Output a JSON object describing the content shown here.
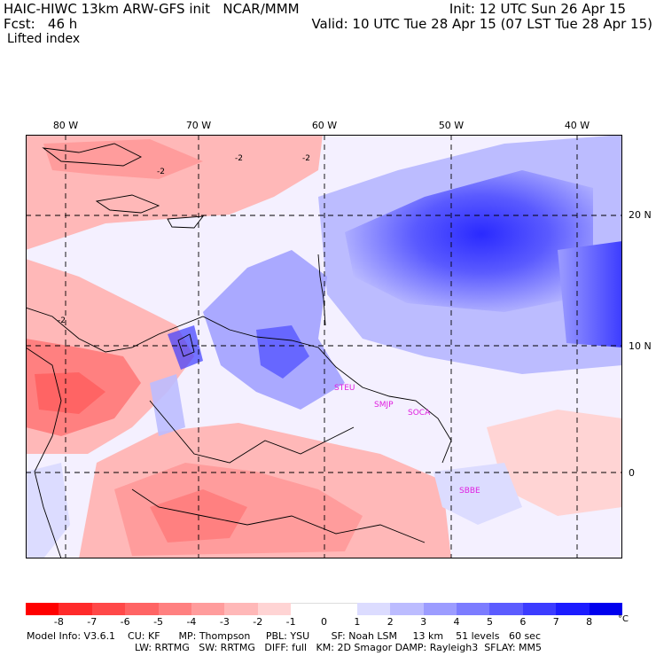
{
  "header": {
    "model_line": "HAIC-HIWC 13km ARW-GFS init   NCAR/MMM",
    "init_line": "Init: 12 UTC Sun 26 Apr 15",
    "fcst_line": "Fcst:   46 h",
    "valid_line": "Valid: 10 UTC Tue 28 Apr 15 (07 LST Tue 28 Apr 15)",
    "field_name": "Lifted index"
  },
  "map": {
    "lon_labels": [
      "80 W",
      "70 W",
      "60 W",
      "50 W",
      "40 W"
    ],
    "lat_labels": [
      "20 N",
      "10 N",
      "0"
    ],
    "contour_label": "-2",
    "regions": [
      "STEU",
      "SMJP",
      "SOCA",
      "SBBE"
    ]
  },
  "legend": {
    "values": [
      "-8",
      "-7",
      "-6",
      "-5",
      "-4",
      "-3",
      "-2",
      "-1",
      "0",
      "1",
      "2",
      "3",
      "4",
      "5",
      "6",
      "7",
      "8"
    ],
    "unit": "°C",
    "colors": [
      "#ff0000",
      "#ff2a2a",
      "#ff4848",
      "#ff6464",
      "#ff8080",
      "#ff9c9c",
      "#ffb8b8",
      "#ffd4d4",
      "#ffffff",
      "#ffffff",
      "#dcdcff",
      "#bcbcff",
      "#9c9cff",
      "#7c7cff",
      "#5c5cff",
      "#3c3cff",
      "#1c1cff",
      "#0000ee"
    ]
  },
  "footer": {
    "line1": "Model Info: V3.6.1    CU: KF      MP: Thompson     PBL: YSU       SF: Noah LSM     13 km    51 levels   60 sec",
    "line2": "LW: RRTMG   SW: RRTMG   DIFF: full   KM: 2D Smagor DAMP: Rayleigh3  SFLAY: MM5"
  }
}
